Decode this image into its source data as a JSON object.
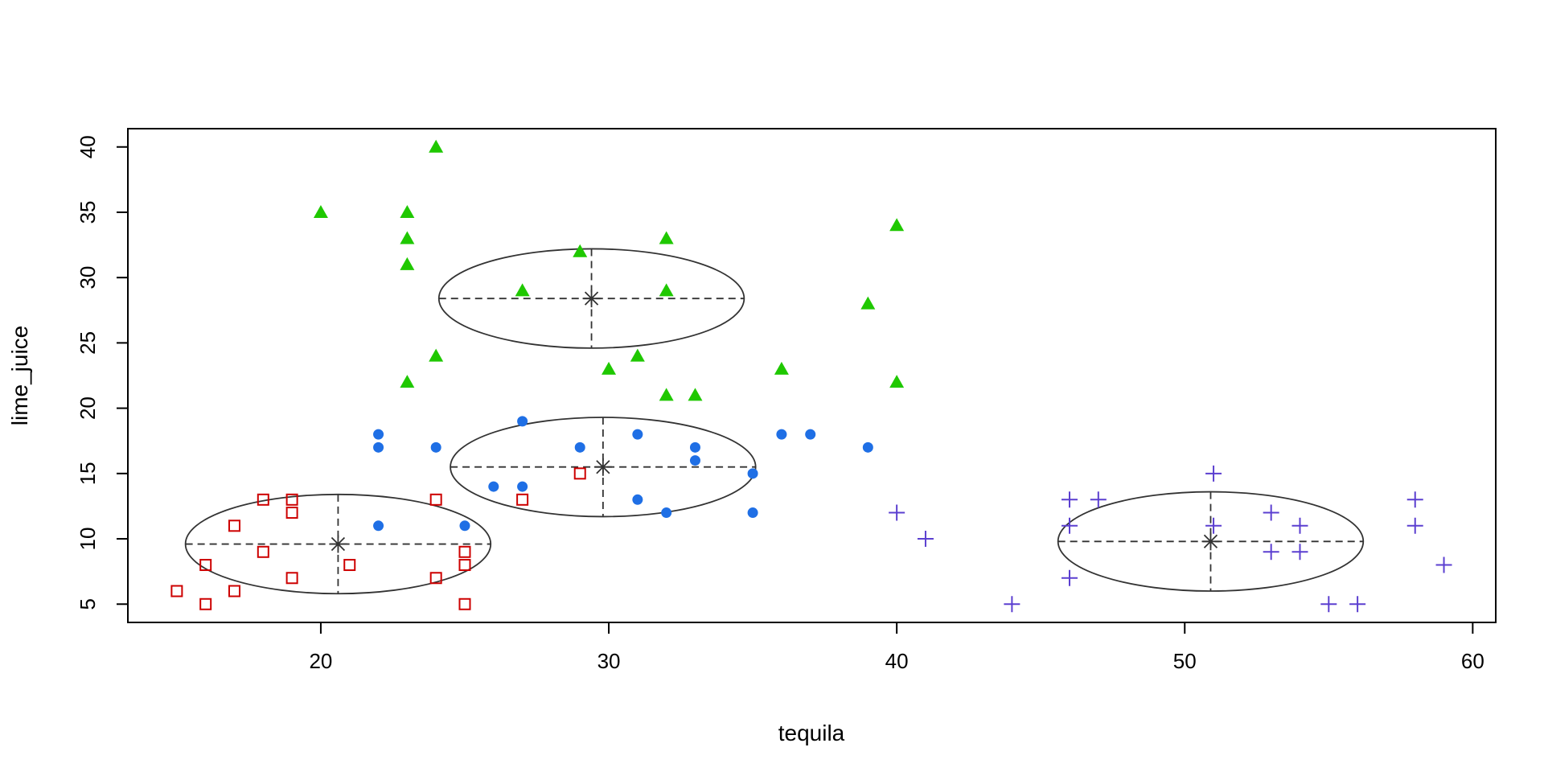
{
  "chart_data": {
    "type": "scatter",
    "xlabel": "tequila",
    "ylabel": "lime_juice",
    "xlim": [
      13.3,
      60.8
    ],
    "ylim": [
      3.6,
      41.4
    ],
    "xticks": [
      "20",
      "30",
      "40",
      "50",
      "60"
    ],
    "yticks": [
      "5",
      "10",
      "15",
      "20",
      "25",
      "30",
      "35",
      "40"
    ],
    "grid": false,
    "legend": "none",
    "series": [
      {
        "marker": "open-square",
        "color": "#CD0000",
        "points": [
          [
            15,
            6
          ],
          [
            16,
            5
          ],
          [
            16,
            8
          ],
          [
            17,
            6
          ],
          [
            17,
            11
          ],
          [
            18,
            9
          ],
          [
            18,
            13
          ],
          [
            19,
            7
          ],
          [
            19,
            12
          ],
          [
            19,
            13
          ],
          [
            21,
            8
          ],
          [
            24,
            7
          ],
          [
            24,
            13
          ],
          [
            25,
            5
          ],
          [
            25,
            8
          ],
          [
            25,
            9
          ],
          [
            27,
            13
          ],
          [
            29,
            15
          ]
        ],
        "center": [
          20.6,
          9.6
        ],
        "ellipse_radius": [
          5.3,
          3.8
        ]
      },
      {
        "marker": "filled-circle",
        "color": "#1F6FE5",
        "points": [
          [
            22,
            11
          ],
          [
            22,
            17
          ],
          [
            22,
            18
          ],
          [
            24,
            17
          ],
          [
            25,
            11
          ],
          [
            26,
            14
          ],
          [
            27,
            14
          ],
          [
            27,
            19
          ],
          [
            29,
            17
          ],
          [
            31,
            13
          ],
          [
            31,
            18
          ],
          [
            32,
            12
          ],
          [
            33,
            16
          ],
          [
            33,
            17
          ],
          [
            35,
            12
          ],
          [
            35,
            15
          ],
          [
            36,
            18
          ],
          [
            37,
            18
          ],
          [
            39,
            17
          ]
        ],
        "center": [
          29.8,
          15.5
        ],
        "ellipse_radius": [
          5.3,
          3.8
        ]
      },
      {
        "marker": "filled-triangle",
        "color": "#1FC800",
        "points": [
          [
            20,
            35
          ],
          [
            23,
            22
          ],
          [
            23,
            31
          ],
          [
            23,
            33
          ],
          [
            23,
            35
          ],
          [
            24,
            24
          ],
          [
            24,
            40
          ],
          [
            27,
            29
          ],
          [
            29,
            32
          ],
          [
            30,
            23
          ],
          [
            31,
            24
          ],
          [
            32,
            21
          ],
          [
            32,
            29
          ],
          [
            32,
            33
          ],
          [
            33,
            21
          ],
          [
            36,
            23
          ],
          [
            39,
            28
          ],
          [
            40,
            22
          ],
          [
            40,
            34
          ]
        ],
        "center": [
          29.4,
          28.4
        ],
        "ellipse_radius": [
          5.3,
          3.8
        ]
      },
      {
        "marker": "plus",
        "color": "#5B3FD0",
        "points": [
          [
            40,
            12
          ],
          [
            41,
            10
          ],
          [
            44,
            5
          ],
          [
            46,
            7
          ],
          [
            46,
            11
          ],
          [
            46,
            13
          ],
          [
            47,
            13
          ],
          [
            51,
            11
          ],
          [
            51,
            15
          ],
          [
            53,
            9
          ],
          [
            53,
            12
          ],
          [
            54,
            9
          ],
          [
            54,
            11
          ],
          [
            55,
            5
          ],
          [
            56,
            5
          ],
          [
            58,
            11
          ],
          [
            58,
            13
          ],
          [
            59,
            8
          ]
        ],
        "center": [
          50.9,
          9.8
        ],
        "ellipse_radius": [
          5.3,
          3.8
        ]
      }
    ]
  }
}
